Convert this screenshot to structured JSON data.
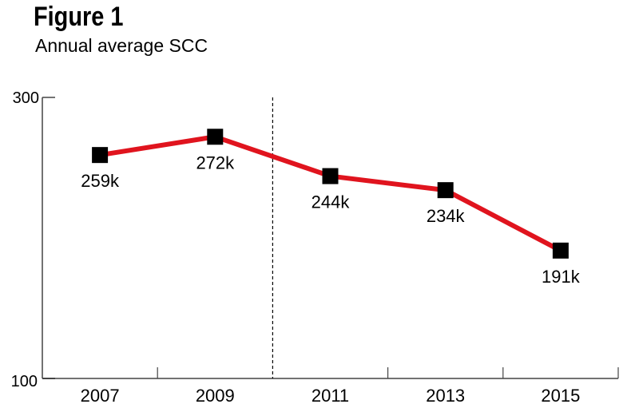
{
  "chart_data": {
    "type": "line",
    "title": "Figure 1",
    "subtitle": "Annual average SCC",
    "xlabel": "",
    "ylabel": "",
    "categories": [
      "2007",
      "2009",
      "2011",
      "2013",
      "2015"
    ],
    "series": [
      {
        "name": "Annual average SCC",
        "values": [
          259,
          272,
          244,
          234,
          191
        ],
        "labels": [
          "259k",
          "272k",
          "244k",
          "234k",
          "191k"
        ],
        "color": "#e0141e"
      }
    ],
    "ylim": [
      100,
      300
    ],
    "yticks": [
      "300",
      "100"
    ],
    "marker_color": "#000000",
    "annotation": "dashed vertical divider between 2009 and 2011",
    "grid": false
  }
}
